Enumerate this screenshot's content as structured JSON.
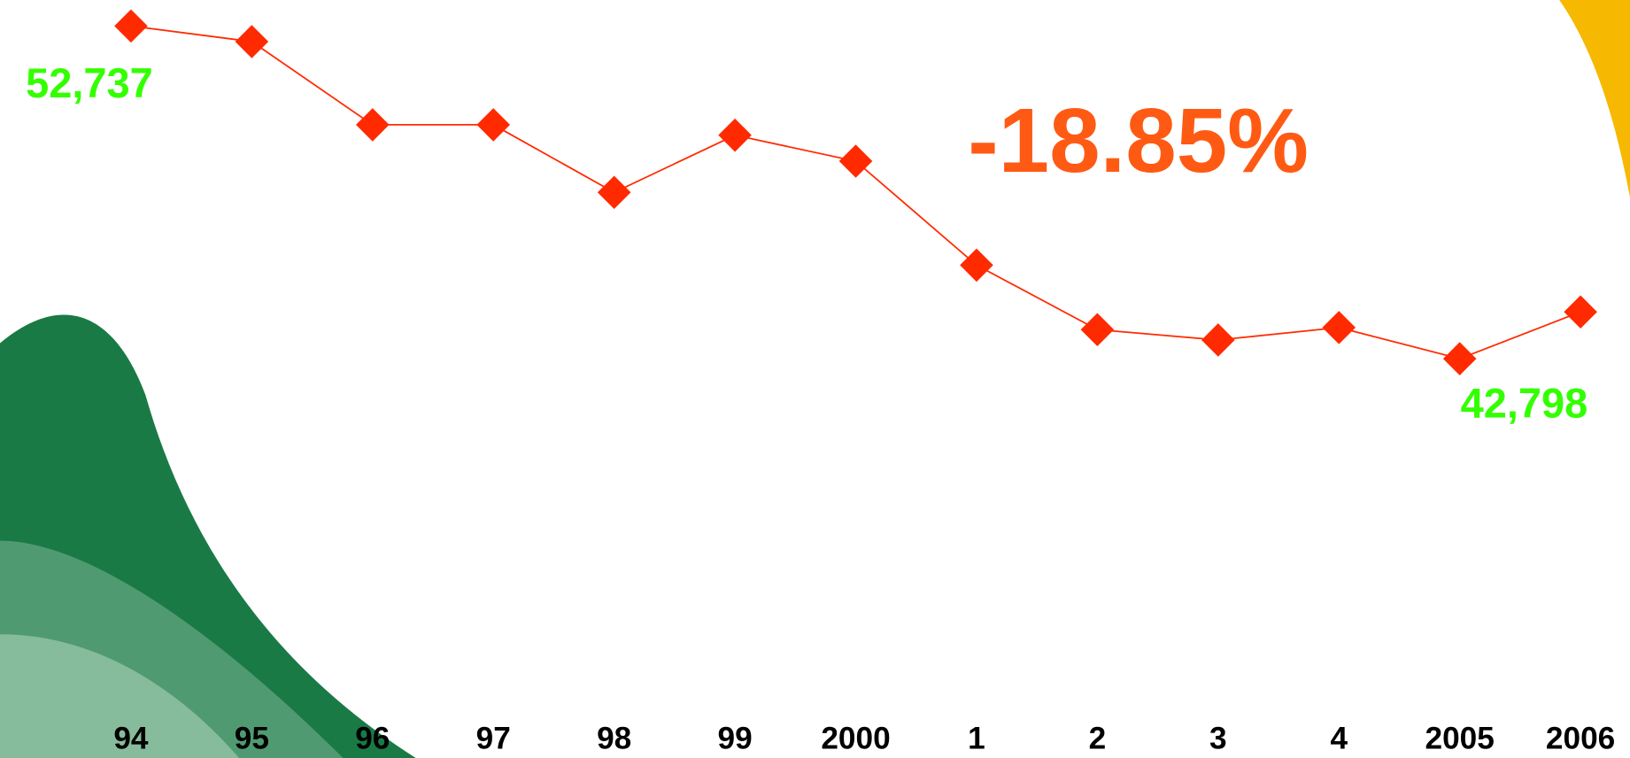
{
  "chart_data": {
    "type": "line",
    "annotation": "-18.85%",
    "categories": [
      "94",
      "95",
      "96",
      "97",
      "98",
      "99",
      "2000",
      "1",
      "2",
      "3",
      "4",
      "2005",
      "2006"
    ],
    "series": [
      {
        "color": "#ff2a00",
        "values": [
          52737,
          52271,
          49786,
          49786,
          47767,
          49475,
          48699,
          45593,
          43667,
          43357,
          43729,
          42798,
          44196
        ],
        "value_labels": [
          "52,737",
          null,
          null,
          null,
          null,
          null,
          null,
          null,
          null,
          null,
          null,
          "42,798",
          null
        ]
      }
    ],
    "label_color": "#33ff00",
    "annotation_color": "#ff5a14",
    "ylim": [
      30871,
      53513
    ]
  }
}
